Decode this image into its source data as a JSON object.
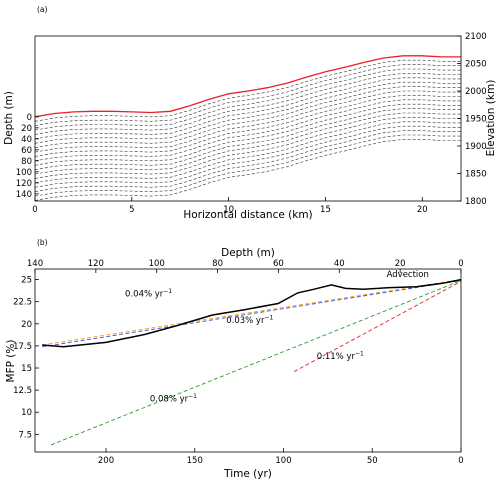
{
  "chart_data": [
    {
      "type": "line",
      "panel_label": "(a)",
      "xlabel": "Horizontal distance (km)",
      "ylabel": "Depth (m)",
      "ylabel_right": "Elevation (km)",
      "xlim": [
        0,
        22
      ],
      "xticks": [
        "0",
        "5",
        "10",
        "15",
        "20"
      ],
      "xtick_values": [
        0,
        5,
        10,
        15,
        20
      ],
      "ylim_right": [
        1800,
        2100
      ],
      "yticks_right": [
        "1800",
        "1850",
        "1900",
        "1950",
        "2000",
        "2050",
        "2100"
      ],
      "ytick_values_right": [
        1800,
        1850,
        1900,
        1950,
        2000,
        2050,
        2100
      ],
      "yticks_left": [
        "0",
        "20",
        "40",
        "60",
        "80",
        "100",
        "120",
        "140"
      ],
      "ytick_values_left": [
        0,
        20,
        40,
        60,
        80,
        100,
        120,
        140
      ],
      "depth_zero_elevation": 1953,
      "surface_color": "#e8202a",
      "layer_color": "#333333",
      "surface": {
        "x": [
          0,
          1,
          2,
          3,
          4,
          5,
          6,
          7,
          8,
          9,
          10,
          11,
          12,
          13,
          14,
          15,
          16,
          17,
          18,
          19,
          20,
          21,
          22
        ],
        "elevation": [
          1953,
          1959,
          1962,
          1963,
          1963,
          1962,
          1961,
          1963,
          1973,
          1985,
          1995,
          2000,
          2006,
          2014,
          2025,
          2035,
          2043,
          2052,
          2060,
          2064,
          2064,
          2062,
          2062
        ]
      },
      "layer_spacing_m": 8,
      "layer_count": 19
    },
    {
      "type": "line",
      "panel_label": "(b)",
      "xlabel": "Time (yr)",
      "xlabel_top": "Depth (m)",
      "ylabel": "MFP (%)",
      "xlim": [
        240,
        0
      ],
      "xticks": [
        "200",
        "150",
        "100",
        "50",
        "0"
      ],
      "xtick_values": [
        200,
        150,
        100,
        50,
        0
      ],
      "xlim_top": [
        140,
        0
      ],
      "xticks_top": [
        "140",
        "120",
        "100",
        "80",
        "60",
        "40",
        "20",
        "0"
      ],
      "xtick_values_top": [
        140,
        120,
        100,
        80,
        60,
        40,
        20,
        0
      ],
      "ylim": [
        5.5,
        26.2
      ],
      "yticks": [
        "7.5",
        "10",
        "12.5",
        "15",
        "17.5",
        "20",
        "22.5",
        "25"
      ],
      "ytick_values": [
        7.5,
        10,
        12.5,
        15,
        17.5,
        20,
        22.5,
        25
      ],
      "series": [
        {
          "color": "#000000",
          "style": "solid",
          "x": [
            236,
            224,
            200,
            178,
            160,
            140,
            122,
            103,
            92,
            83,
            73,
            65,
            55,
            40,
            25,
            10,
            0
          ],
          "y": [
            17.6,
            17.4,
            17.9,
            18.8,
            19.8,
            21.0,
            21.6,
            22.3,
            23.5,
            23.9,
            24.4,
            24.0,
            23.9,
            24.1,
            24.2,
            24.6,
            25.0
          ]
        },
        {
          "color": "#f5a623",
          "style": "dashed",
          "x": [
            236,
            0
          ],
          "y": [
            17.6,
            25.0
          ]
        },
        {
          "color": "#3b4fd6",
          "style": "dashed",
          "x": [
            236,
            0
          ],
          "y": [
            17.4,
            24.9
          ]
        },
        {
          "color": "#2a9d2a",
          "style": "dashed",
          "x": [
            231,
            0
          ],
          "y": [
            6.3,
            24.9
          ]
        },
        {
          "color": "#e8202a",
          "style": "dashed",
          "x": [
            94,
            0
          ],
          "y": [
            14.6,
            24.8
          ]
        }
      ],
      "annotations": [
        {
          "text": "0.04% yr",
          "sup": "−1",
          "x": 176,
          "y": 23.1
        },
        {
          "text": "0.03% yr",
          "sup": "−1",
          "x": 119,
          "y": 20.1
        },
        {
          "text": "0.11% yr",
          "sup": "−1",
          "x": 68,
          "y": 16.0
        },
        {
          "text": "0.08% yr",
          "sup": "−1",
          "x": 162,
          "y": 11.2
        },
        {
          "text": "Advection",
          "sup": "",
          "x": 30,
          "y": 25.3
        }
      ]
    }
  ]
}
